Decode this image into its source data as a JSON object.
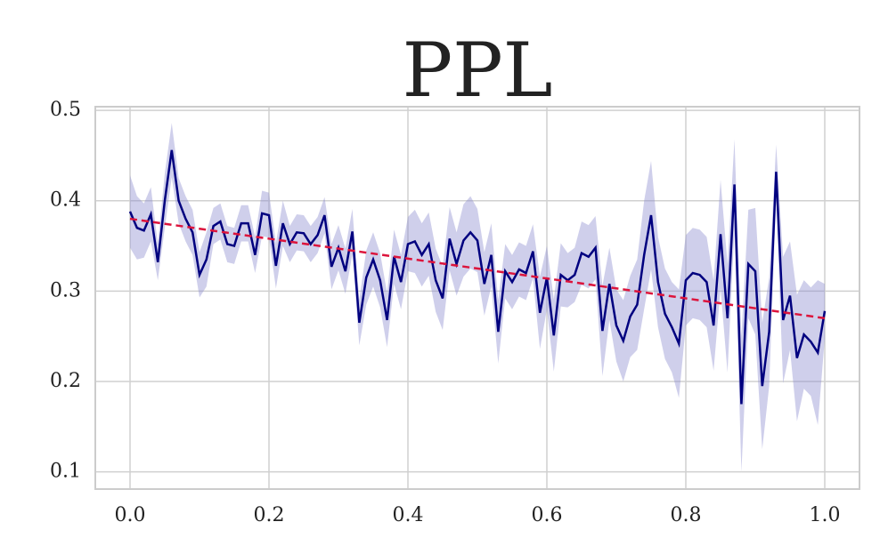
{
  "chart_data": {
    "type": "line",
    "title": "PPL",
    "x": [
      0,
      0.01,
      0.02,
      0.03,
      0.04,
      0.05,
      0.06,
      0.07,
      0.08,
      0.09,
      0.1,
      0.11,
      0.12,
      0.13,
      0.14,
      0.15,
      0.16,
      0.17,
      0.18,
      0.19,
      0.2,
      0.21,
      0.22,
      0.23,
      0.24,
      0.25,
      0.26,
      0.27,
      0.28,
      0.29,
      0.3,
      0.31,
      0.32,
      0.33,
      0.34,
      0.35,
      0.36,
      0.37,
      0.38,
      0.39,
      0.4,
      0.41,
      0.42,
      0.43,
      0.44,
      0.45,
      0.46,
      0.47,
      0.48,
      0.49,
      0.5,
      0.51,
      0.52,
      0.53,
      0.54,
      0.55,
      0.56,
      0.57,
      0.58,
      0.59,
      0.6,
      0.61,
      0.62,
      0.63,
      0.64,
      0.65,
      0.66,
      0.67,
      0.68,
      0.69,
      0.7,
      0.71,
      0.72,
      0.73,
      0.74,
      0.75,
      0.76,
      0.77,
      0.78,
      0.79,
      0.8,
      0.81,
      0.82,
      0.83,
      0.84,
      0.85,
      0.86,
      0.87,
      0.88,
      0.89,
      0.9,
      0.91,
      0.92,
      0.93,
      0.94,
      0.95,
      0.96,
      0.97,
      0.98,
      0.99,
      1
    ],
    "series": [
      {
        "color": "#00007f",
        "band_color": "#8888cc",
        "values": [
          0.388,
          0.37,
          0.367,
          0.385,
          0.332,
          0.4,
          0.456,
          0.4,
          0.38,
          0.365,
          0.318,
          0.335,
          0.372,
          0.377,
          0.352,
          0.35,
          0.375,
          0.375,
          0.34,
          0.386,
          0.384,
          0.328,
          0.375,
          0.352,
          0.365,
          0.364,
          0.352,
          0.362,
          0.384,
          0.327,
          0.348,
          0.322,
          0.366,
          0.265,
          0.315,
          0.335,
          0.312,
          0.268,
          0.338,
          0.31,
          0.352,
          0.355,
          0.34,
          0.352,
          0.312,
          0.292,
          0.358,
          0.33,
          0.356,
          0.365,
          0.356,
          0.308,
          0.34,
          0.255,
          0.322,
          0.31,
          0.324,
          0.32,
          0.344,
          0.276,
          0.315,
          0.251,
          0.318,
          0.312,
          0.318,
          0.342,
          0.338,
          0.348,
          0.256,
          0.308,
          0.262,
          0.245,
          0.272,
          0.285,
          0.34,
          0.384,
          0.31,
          0.275,
          0.26,
          0.242,
          0.312,
          0.32,
          0.318,
          0.31,
          0.262,
          0.363,
          0.27,
          0.418,
          0.175,
          0.33,
          0.322,
          0.195,
          0.255,
          0.432,
          0.268,
          0.295,
          0.226,
          0.252,
          0.244,
          0.232,
          0.278
        ],
        "errors": [
          0.04,
          0.035,
          0.03,
          0.03,
          0.02,
          0.03,
          0.03,
          0.025,
          0.025,
          0.025,
          0.025,
          0.03,
          0.02,
          0.02,
          0.02,
          0.02,
          0.02,
          0.02,
          0.02,
          0.025,
          0.025,
          0.025,
          0.025,
          0.02,
          0.02,
          0.02,
          0.02,
          0.02,
          0.02,
          0.025,
          0.025,
          0.025,
          0.025,
          0.025,
          0.03,
          0.03,
          0.03,
          0.03,
          0.03,
          0.03,
          0.03,
          0.035,
          0.035,
          0.035,
          0.035,
          0.035,
          0.035,
          0.035,
          0.04,
          0.04,
          0.035,
          0.035,
          0.035,
          0.035,
          0.03,
          0.03,
          0.03,
          0.03,
          0.03,
          0.04,
          0.035,
          0.04,
          0.035,
          0.03,
          0.03,
          0.035,
          0.035,
          0.035,
          0.05,
          0.04,
          0.04,
          0.045,
          0.045,
          0.05,
          0.06,
          0.06,
          0.05,
          0.05,
          0.05,
          0.06,
          0.05,
          0.05,
          0.05,
          0.05,
          0.05,
          0.06,
          0.06,
          0.05,
          0.075,
          0.06,
          0.07,
          0.07,
          0.06,
          0.03,
          0.07,
          0.06,
          0.07,
          0.06,
          0.06,
          0.08,
          0.03
        ]
      },
      {
        "color": "#dc143c",
        "dashed": true,
        "x": [
          0,
          1
        ],
        "values": [
          0.38,
          0.27
        ]
      }
    ],
    "xlim": [
      -0.05,
      1.05
    ],
    "ylim": [
      0.081,
      0.504
    ],
    "xticks": [
      {
        "value": 0,
        "label": "0.0"
      },
      0.2,
      0.4,
      0.6,
      0.8,
      {
        "value": 1,
        "label": "1.0"
      }
    ],
    "yticks": [
      0.1,
      0.2,
      0.3,
      0.4,
      0.5
    ],
    "grid": true
  }
}
